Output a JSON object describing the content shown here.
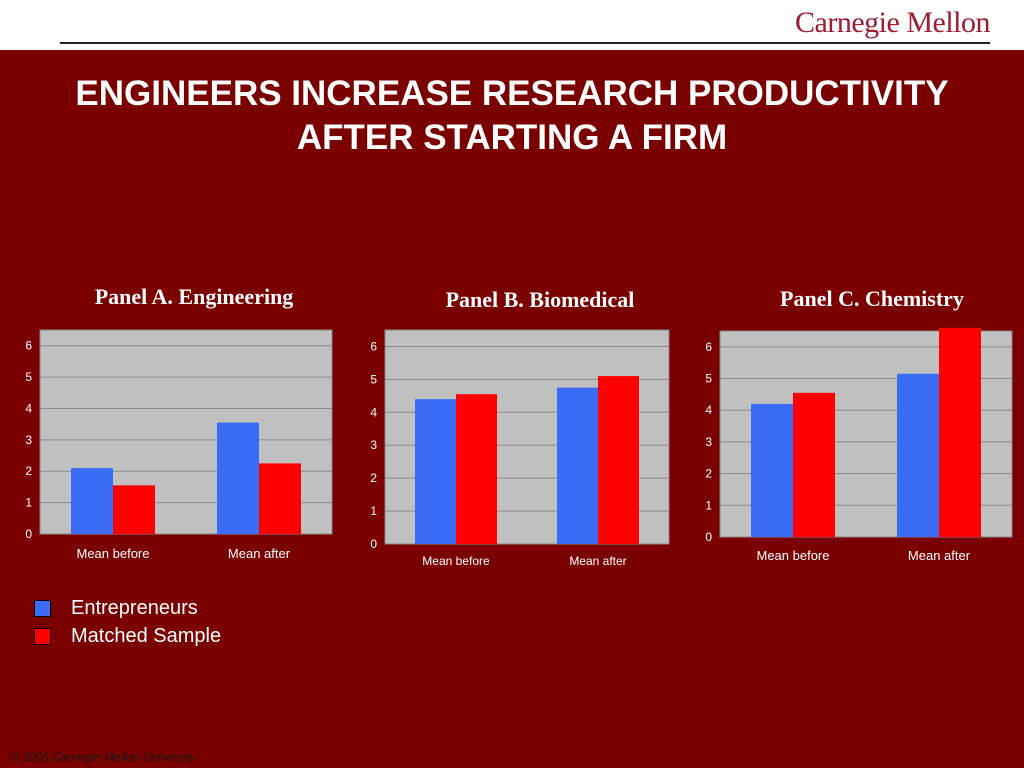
{
  "logo": "Carnegie Mellon",
  "title_lines": [
    "ENGINEERS INCREASE RESEARCH PRODUCTIVITY",
    "AFTER STARTING A FIRM"
  ],
  "colors": {
    "background": "#7a0000",
    "entrepreneurs": "#3a6cf5",
    "matched": "#ff0000",
    "plot_area": "#c0c0c0"
  },
  "legend": [
    {
      "label": "Entrepreneurs",
      "color": "#3a6cf5"
    },
    {
      "label": "Matched Sample",
      "color": "#ff0000"
    }
  ],
  "footer": "© 2005 Carnegie Mellon University",
  "chart_data": [
    {
      "type": "bar",
      "title": "Panel A. Engineering",
      "categories": [
        "Mean before",
        "Mean after"
      ],
      "series": [
        {
          "name": "Entrepreneurs",
          "values": [
            2.1,
            3.55
          ]
        },
        {
          "name": "Matched Sample",
          "values": [
            1.55,
            2.25
          ]
        }
      ],
      "yticks": [
        "0",
        "1",
        "2",
        "3",
        "4",
        "5",
        "6"
      ],
      "ylim": [
        0,
        6.5
      ],
      "grid": true,
      "legend": "bottom-left"
    },
    {
      "type": "bar",
      "title": "Panel B. Biomedical",
      "categories": [
        "Mean before",
        "Mean after"
      ],
      "series": [
        {
          "name": "Entrepreneurs",
          "values": [
            4.4,
            4.75
          ]
        },
        {
          "name": "Matched Sample",
          "values": [
            4.55,
            5.1
          ]
        }
      ],
      "yticks": [
        "0",
        "1",
        "2",
        "3",
        "4",
        "5",
        "6"
      ],
      "ylim": [
        0,
        6.5
      ],
      "grid": true,
      "legend": "bottom-left"
    },
    {
      "type": "bar",
      "title": "Panel C. Chemistry",
      "categories": [
        "Mean before",
        "Mean after"
      ],
      "series": [
        {
          "name": "Entrepreneurs",
          "values": [
            4.2,
            5.15
          ]
        },
        {
          "name": "Matched Sample",
          "values": [
            4.55,
            6.6
          ]
        }
      ],
      "yticks": [
        "0",
        "1",
        "2",
        "3",
        "4",
        "5",
        "6"
      ],
      "ylim": [
        0,
        6.5
      ],
      "grid": true,
      "legend": "bottom-left"
    }
  ]
}
